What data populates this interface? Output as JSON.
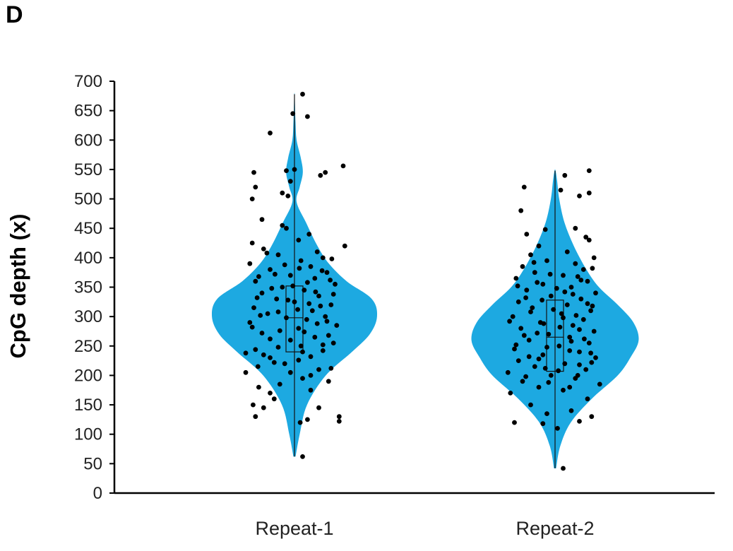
{
  "panel_label": "D",
  "chart_data": {
    "type": "violin",
    "title": "",
    "xlabel": "",
    "ylabel": "CpG depth (x)",
    "ylim": [
      0,
      700
    ],
    "yticks": [
      "0",
      "50",
      "100",
      "150",
      "200",
      "250",
      "300",
      "350",
      "400",
      "450",
      "500",
      "550",
      "600",
      "650",
      "700"
    ],
    "categories": [
      "Repeat-1",
      "Repeat-2"
    ],
    "violin_color": "#1da9e1",
    "point_color": "#000000",
    "series": [
      {
        "category": "Repeat-1",
        "min": 62,
        "max": 678,
        "q1": 240,
        "median": 298,
        "q3": 352,
        "density": [
          [
            62,
            0.01
          ],
          [
            100,
            0.05
          ],
          [
            150,
            0.12
          ],
          [
            200,
            0.3
          ],
          [
            240,
            0.55
          ],
          [
            270,
            0.72
          ],
          [
            300,
            0.79
          ],
          [
            330,
            0.74
          ],
          [
            360,
            0.5
          ],
          [
            390,
            0.33
          ],
          [
            420,
            0.22
          ],
          [
            460,
            0.11
          ],
          [
            495,
            0.02
          ],
          [
            520,
            0.05
          ],
          [
            545,
            0.08
          ],
          [
            570,
            0.06
          ],
          [
            600,
            0.02
          ],
          [
            630,
            0.01
          ],
          [
            660,
            0.005
          ],
          [
            678,
            0.002
          ]
        ],
        "points": [
          [
            130,
            -0.48
          ],
          [
            145,
            -0.38
          ],
          [
            150,
            -0.51
          ],
          [
            160,
            -0.25
          ],
          [
            170,
            -0.3
          ],
          [
            180,
            -0.44
          ],
          [
            120,
            0.07
          ],
          [
            62,
            0.1
          ],
          [
            125,
            0.16
          ],
          [
            130,
            0.55
          ],
          [
            122,
            0.55
          ],
          [
            145,
            0.3
          ],
          [
            175,
            0.2
          ],
          [
            190,
            0.42
          ],
          [
            205,
            -0.6
          ],
          [
            215,
            -0.45
          ],
          [
            220,
            -0.12
          ],
          [
            230,
            -0.3
          ],
          [
            238,
            -0.6
          ],
          [
            240,
            0.1
          ],
          [
            242,
            0.35
          ],
          [
            248,
            -0.2
          ],
          [
            255,
            0.48
          ],
          [
            260,
            -0.05
          ],
          [
            265,
            0.25
          ],
          [
            272,
            -0.4
          ],
          [
            280,
            0.05
          ],
          [
            285,
            0.52
          ],
          [
            290,
            -0.55
          ],
          [
            295,
            0.15
          ],
          [
            298,
            -0.1
          ],
          [
            300,
            0.38
          ],
          [
            305,
            -0.33
          ],
          [
            310,
            0.22
          ],
          [
            315,
            -0.5
          ],
          [
            320,
            0.45
          ],
          [
            325,
            0.0
          ],
          [
            330,
            -0.22
          ],
          [
            335,
            0.3
          ],
          [
            340,
            -0.4
          ],
          [
            345,
            0.12
          ],
          [
            350,
            -0.15
          ],
          [
            355,
            0.5
          ],
          [
            360,
            -0.48
          ],
          [
            365,
            0.25
          ],
          [
            370,
            -0.05
          ],
          [
            375,
            0.4
          ],
          [
            380,
            -0.3
          ],
          [
            385,
            0.2
          ],
          [
            390,
            -0.55
          ],
          [
            395,
            0.08
          ],
          [
            400,
            0.35
          ],
          [
            405,
            -0.2
          ],
          [
            410,
            0.28
          ],
          [
            415,
            -0.38
          ],
          [
            420,
            0.62
          ],
          [
            425,
            -0.52
          ],
          [
            430,
            0.05
          ],
          [
            440,
            0.18
          ],
          [
            450,
            -0.1
          ],
          [
            455,
            -0.15
          ],
          [
            465,
            -0.4
          ],
          [
            500,
            -0.52
          ],
          [
            505,
            -0.08
          ],
          [
            510,
            -0.15
          ],
          [
            520,
            -0.48
          ],
          [
            530,
            -0.05
          ],
          [
            540,
            0.32
          ],
          [
            545,
            0.38
          ],
          [
            545,
            -0.5
          ],
          [
            548,
            -0.1
          ],
          [
            550,
            0.0
          ],
          [
            556,
            0.6
          ],
          [
            612,
            -0.3
          ],
          [
            640,
            0.16
          ],
          [
            645,
            -0.02
          ],
          [
            678,
            0.1
          ],
          [
            200,
            0.2
          ],
          [
            210,
            0.3
          ],
          [
            226,
            0.05
          ],
          [
            235,
            -0.38
          ],
          [
            250,
            0.08
          ],
          [
            268,
            0.42
          ],
          [
            276,
            -0.18
          ],
          [
            288,
            0.28
          ],
          [
            302,
            -0.42
          ],
          [
            312,
            0.04
          ],
          [
            318,
            0.32
          ],
          [
            328,
            -0.08
          ],
          [
            338,
            0.48
          ],
          [
            348,
            -0.28
          ],
          [
            358,
            0.16
          ],
          [
            368,
            -0.44
          ],
          [
            378,
            0.34
          ],
          [
            388,
            -0.12
          ],
          [
            398,
            0.46
          ],
          [
            408,
            -0.34
          ],
          [
            185,
            -0.18
          ],
          [
            195,
            0.1
          ],
          [
            205,
            -0.05
          ],
          [
            212,
            0.45
          ],
          [
            222,
            -0.25
          ],
          [
            232,
            0.2
          ],
          [
            244,
            -0.48
          ],
          [
            252,
            0.35
          ],
          [
            262,
            -0.3
          ],
          [
            274,
            0.12
          ],
          [
            282,
            -0.52
          ],
          [
            292,
            0.4
          ],
          [
            308,
            -0.2
          ],
          [
            322,
            0.18
          ],
          [
            332,
            -0.46
          ],
          [
            342,
            0.26
          ],
          [
            352,
            -0.02
          ],
          [
            362,
            0.44
          ],
          [
            372,
            -0.24
          ],
          [
            382,
            0.06
          ]
        ]
      },
      {
        "category": "Repeat-2",
        "min": 42,
        "max": 548,
        "q1": 207,
        "median": 265,
        "q3": 328,
        "density": [
          [
            42,
            0.01
          ],
          [
            80,
            0.05
          ],
          [
            120,
            0.15
          ],
          [
            160,
            0.35
          ],
          [
            200,
            0.6
          ],
          [
            230,
            0.72
          ],
          [
            260,
            0.8
          ],
          [
            290,
            0.75
          ],
          [
            320,
            0.6
          ],
          [
            350,
            0.42
          ],
          [
            380,
            0.3
          ],
          [
            420,
            0.18
          ],
          [
            460,
            0.09
          ],
          [
            500,
            0.04
          ],
          [
            530,
            0.02
          ],
          [
            548,
            0.005
          ]
        ],
        "points": [
          [
            42,
            0.1
          ],
          [
            110,
            0.03
          ],
          [
            118,
            -0.15
          ],
          [
            120,
            -0.5
          ],
          [
            122,
            0.3
          ],
          [
            130,
            0.45
          ],
          [
            135,
            -0.1
          ],
          [
            140,
            0.2
          ],
          [
            150,
            -0.3
          ],
          [
            160,
            0.4
          ],
          [
            170,
            -0.55
          ],
          [
            175,
            0.1
          ],
          [
            180,
            -0.2
          ],
          [
            185,
            0.55
          ],
          [
            190,
            -0.4
          ],
          [
            195,
            0.25
          ],
          [
            200,
            -0.05
          ],
          [
            205,
            -0.58
          ],
          [
            210,
            0.38
          ],
          [
            215,
            -0.25
          ],
          [
            220,
            0.12
          ],
          [
            225,
            -0.45
          ],
          [
            230,
            0.5
          ],
          [
            235,
            -0.15
          ],
          [
            240,
            0.3
          ],
          [
            245,
            -0.5
          ],
          [
            250,
            0.05
          ],
          [
            255,
            0.42
          ],
          [
            260,
            -0.32
          ],
          [
            265,
            0.18
          ],
          [
            270,
            -0.08
          ],
          [
            275,
            0.48
          ],
          [
            280,
            -0.42
          ],
          [
            285,
            0.22
          ],
          [
            290,
            -0.18
          ],
          [
            295,
            0.35
          ],
          [
            300,
            -0.52
          ],
          [
            305,
            0.08
          ],
          [
            310,
            0.44
          ],
          [
            315,
            -0.28
          ],
          [
            320,
            0.15
          ],
          [
            325,
            -0.45
          ],
          [
            330,
            0.32
          ],
          [
            335,
            -0.05
          ],
          [
            340,
            0.5
          ],
          [
            345,
            -0.35
          ],
          [
            350,
            0.2
          ],
          [
            355,
            -0.15
          ],
          [
            360,
            0.4
          ],
          [
            365,
            -0.48
          ],
          [
            370,
            0.1
          ],
          [
            375,
            -0.25
          ],
          [
            380,
            0.35
          ],
          [
            385,
            -0.4
          ],
          [
            390,
            0.25
          ],
          [
            395,
            -0.1
          ],
          [
            400,
            0.48
          ],
          [
            405,
            -0.3
          ],
          [
            410,
            0.15
          ],
          [
            420,
            -0.2
          ],
          [
            430,
            0.42
          ],
          [
            435,
            0.38
          ],
          [
            440,
            -0.35
          ],
          [
            448,
            -0.12
          ],
          [
            450,
            0.25
          ],
          [
            480,
            -0.42
          ],
          [
            505,
            0.3
          ],
          [
            510,
            0.42
          ],
          [
            515,
            0.07
          ],
          [
            520,
            -0.38
          ],
          [
            540,
            0.12
          ],
          [
            548,
            0.42
          ],
          [
            200,
            0.28
          ],
          [
            212,
            -0.12
          ],
          [
            222,
            0.45
          ],
          [
            232,
            -0.32
          ],
          [
            242,
            0.18
          ],
          [
            252,
            -0.48
          ],
          [
            262,
            0.36
          ],
          [
            272,
            -0.22
          ],
          [
            282,
            0.06
          ],
          [
            292,
            -0.56
          ],
          [
            302,
            0.26
          ],
          [
            312,
            -0.02
          ],
          [
            322,
            0.4
          ],
          [
            332,
            -0.36
          ],
          [
            342,
            0.12
          ],
          [
            352,
            -0.46
          ],
          [
            362,
            0.32
          ],
          [
            372,
            -0.06
          ],
          [
            382,
            0.46
          ],
          [
            392,
            -0.26
          ],
          [
            180,
            0.18
          ],
          [
            188,
            -0.08
          ],
          [
            198,
            -0.36
          ],
          [
            208,
            0.04
          ],
          [
            218,
            0.3
          ],
          [
            228,
            -0.2
          ],
          [
            238,
            0.44
          ],
          [
            248,
            -0.1
          ],
          [
            258,
            0.2
          ],
          [
            268,
            -0.38
          ],
          [
            278,
            0.3
          ],
          [
            288,
            -0.14
          ],
          [
            298,
            0.1
          ],
          [
            308,
            -0.3
          ],
          [
            318,
            0.46
          ],
          [
            328,
            -0.16
          ],
          [
            338,
            0.22
          ],
          [
            348,
            0.02
          ],
          [
            358,
            -0.22
          ],
          [
            368,
            0.28
          ]
        ]
      }
    ],
    "grid": false,
    "legend": "none"
  }
}
